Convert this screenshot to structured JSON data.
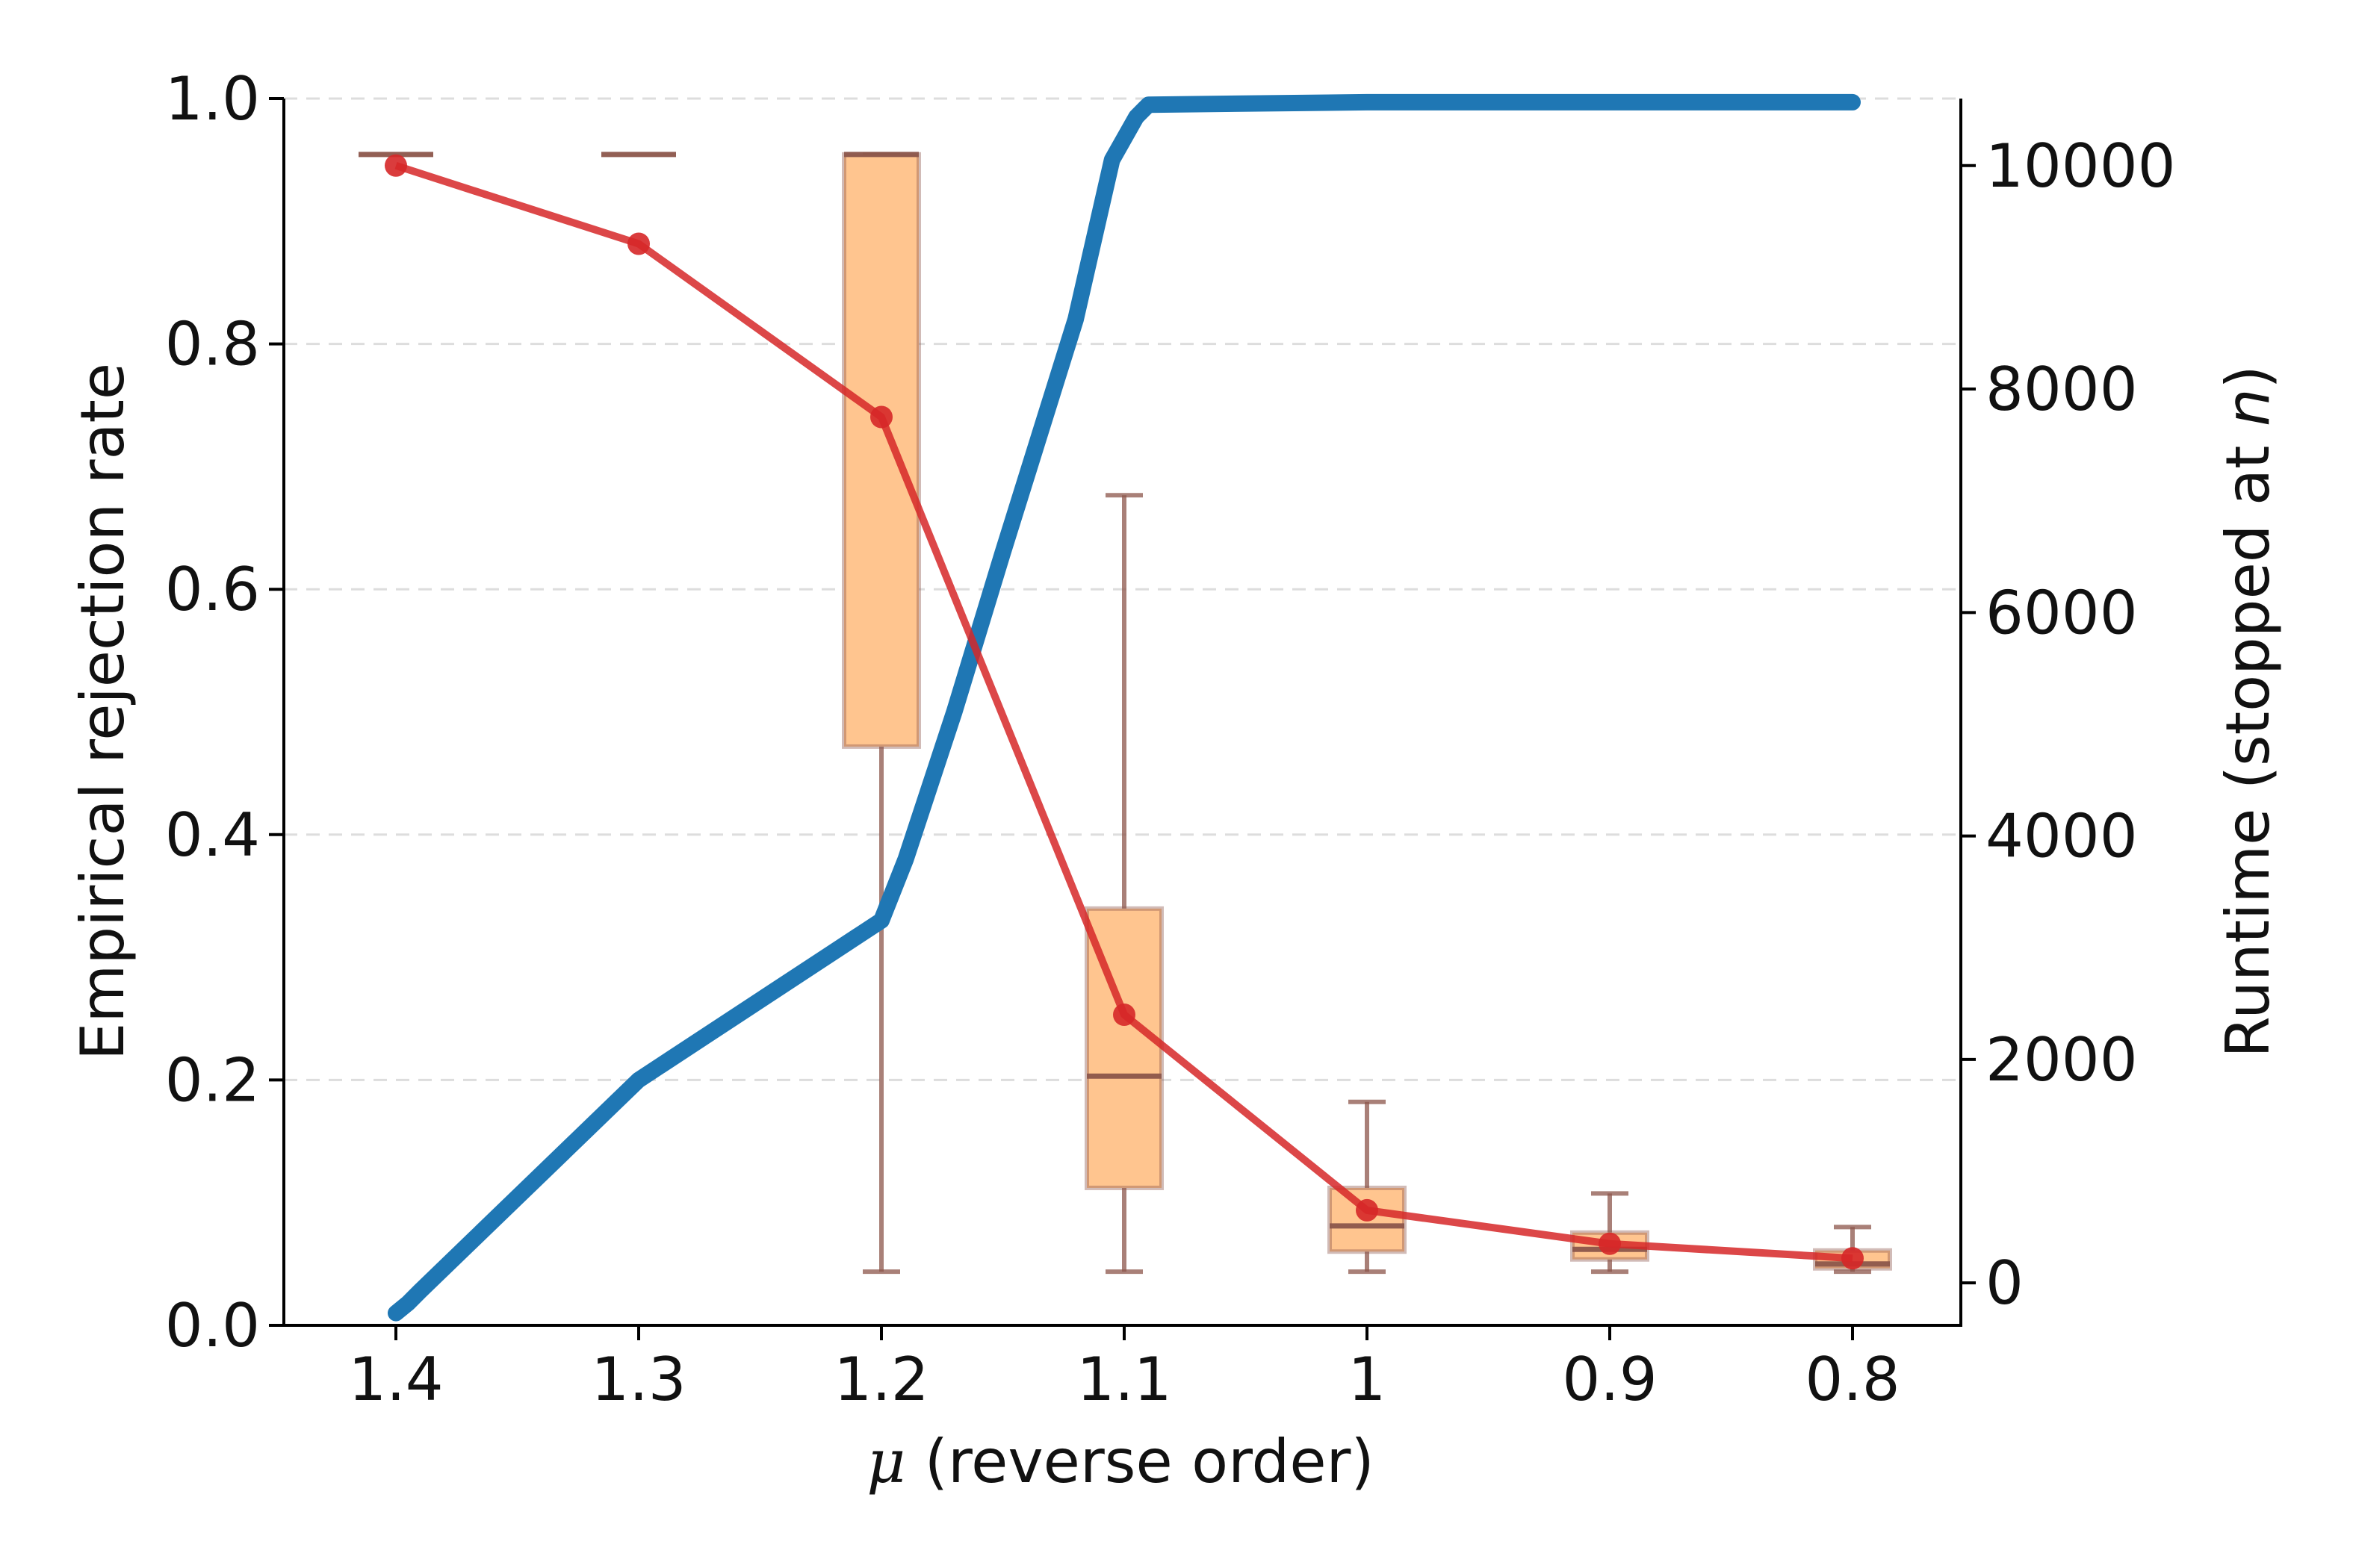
{
  "chart_data": {
    "type": "line",
    "categories": [
      "1.4",
      "1.3",
      "1.2",
      "1.1",
      "1",
      "0.9",
      "0.8"
    ],
    "xlabel": {
      "symbol": "μ",
      "text": " (reverse order)"
    },
    "ylabel": "Empirical rejection rate",
    "y2label": {
      "text": "Runtime (stopped at ",
      "symbol": "n",
      "suffix": ")"
    },
    "ylim": [
      0,
      1
    ],
    "y2lim": [
      -380,
      10600
    ],
    "yticks": [
      "0.0",
      "0.2",
      "0.4",
      "0.6",
      "0.8",
      "1.0"
    ],
    "y2ticks": [
      "0",
      "2000",
      "4000",
      "6000",
      "8000",
      "10000"
    ],
    "grid": "horizontal dashed",
    "series": [
      {
        "axis": "left",
        "color": "#1f77b4",
        "style": "thick line",
        "points": [
          [
            1.4,
            0.01
          ],
          [
            1.395,
            0.018
          ],
          [
            1.39,
            0.028
          ],
          [
            1.3,
            0.2
          ],
          [
            1.2,
            0.33
          ],
          [
            1.19,
            0.38
          ],
          [
            1.17,
            0.5
          ],
          [
            1.15,
            0.63
          ],
          [
            1.12,
            0.82
          ],
          [
            1.105,
            0.95
          ],
          [
            1.095,
            0.985
          ],
          [
            1.09,
            0.995
          ],
          [
            1.0,
            0.997
          ],
          [
            0.9,
            0.997
          ],
          [
            0.8,
            0.997
          ]
        ]
      },
      {
        "axis": "right",
        "color": "#d62728",
        "style": "line with markers",
        "values": [
          10000,
          9300,
          7750,
          2400,
          650,
          350,
          220
        ]
      }
    ],
    "boxplots": {
      "axis": "right",
      "fill": "#ffc58f",
      "edge": "#8c564b",
      "items": [
        {
          "x": "1.4",
          "q1": 10100,
          "median": 10100,
          "q3": 10100,
          "whislo": 10100,
          "whishi": 10100
        },
        {
          "x": "1.3",
          "q1": 10100,
          "median": 10100,
          "q3": 10100,
          "whislo": 10100,
          "whishi": 10100
        },
        {
          "x": "1.2",
          "q1": 4800,
          "median": 10100,
          "q3": 10100,
          "whislo": 100,
          "whishi": 10100
        },
        {
          "x": "1.1",
          "q1": 850,
          "median": 1850,
          "q3": 3350,
          "whislo": 100,
          "whishi": 7050
        },
        {
          "x": "1",
          "q1": 280,
          "median": 510,
          "q3": 850,
          "whislo": 100,
          "whishi": 1620
        },
        {
          "x": "0.9",
          "q1": 210,
          "median": 300,
          "q3": 450,
          "whislo": 100,
          "whishi": 800
        },
        {
          "x": "0.8",
          "q1": 130,
          "median": 170,
          "q3": 290,
          "whislo": 100,
          "whishi": 500
        }
      ]
    }
  }
}
